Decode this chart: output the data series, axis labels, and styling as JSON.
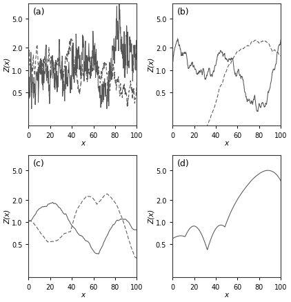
{
  "panels": [
    "(a)",
    "(b)",
    "(c)",
    "(d)"
  ],
  "xlabel": "x",
  "ylabel": "Z(x)",
  "xlim": [
    0,
    100
  ],
  "ylim_log": [
    0.18,
    8.0
  ],
  "yticks": [
    0.5,
    1.0,
    2.0,
    5.0
  ],
  "ytick_labels": [
    "0.5",
    "1.0",
    "2.0",
    "5.0"
  ],
  "xticks": [
    0,
    20,
    40,
    60,
    80,
    100
  ],
  "scale": 28.0,
  "n_pts": 500,
  "n_sim": 3000,
  "line_color": "#555555",
  "background_color": "#ffffff",
  "fig_width": 4.22,
  "fig_height": 4.39,
  "dpi": 100,
  "linewidth": 0.75,
  "fontsize_label": 7.5,
  "fontsize_panel": 9,
  "fontsize_tick": 7
}
